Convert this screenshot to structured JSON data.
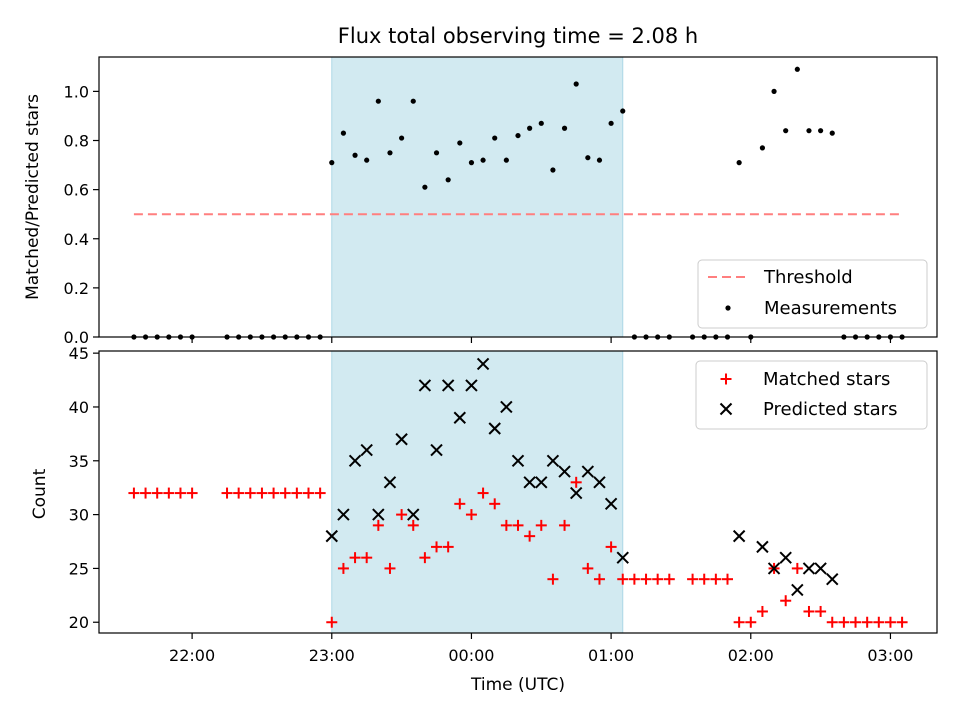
{
  "title": "Flux total observing time = 2.08 h",
  "colors": {
    "shade": "#add8e6",
    "threshold": "#ff7f7f",
    "measurement": "#000000",
    "matched": "#ff0000",
    "predicted": "#000000",
    "axis": "#000000"
  },
  "chart_data": [
    {
      "type": "scatter",
      "ylabel": "Matched/Predicted stars",
      "ylim": [
        0,
        1.14
      ],
      "yticks": [
        0.0,
        0.2,
        0.4,
        0.6,
        0.8,
        1.0
      ],
      "ytick_labels": [
        "0.0",
        "0.2",
        "0.4",
        "0.6",
        "0.8",
        "1.0"
      ],
      "shaded_span": [
        "23:00",
        "01:05"
      ],
      "threshold": {
        "y": 0.5,
        "x_range": [
          "21:35",
          "03:05"
        ],
        "label": "Threshold"
      },
      "legend": {
        "position": "lower right",
        "entries": [
          "Threshold",
          "Measurements"
        ]
      },
      "series": [
        {
          "name": "Measurements",
          "x": [
            "21:35",
            "21:40",
            "21:45",
            "21:50",
            "21:55",
            "22:00",
            "22:15",
            "22:20",
            "22:25",
            "22:30",
            "22:35",
            "22:40",
            "22:45",
            "22:50",
            "22:55",
            "23:00",
            "23:05",
            "23:10",
            "23:15",
            "23:20",
            "23:25",
            "23:30",
            "23:35",
            "23:40",
            "23:45",
            "23:50",
            "23:55",
            "00:00",
            "00:05",
            "00:10",
            "00:15",
            "00:20",
            "00:25",
            "00:30",
            "00:35",
            "00:40",
            "00:45",
            "00:50",
            "00:55",
            "01:00",
            "01:05",
            "01:10",
            "01:15",
            "01:20",
            "01:25",
            "01:35",
            "01:40",
            "01:45",
            "01:50",
            "02:00",
            "01:55",
            "02:05",
            "02:10",
            "02:15",
            "02:20",
            "02:25",
            "02:30",
            "02:35",
            "02:40",
            "02:45",
            "02:50",
            "02:55",
            "03:00",
            "03:05"
          ],
          "y": [
            0,
            0,
            0,
            0,
            0,
            0,
            0,
            0,
            0,
            0,
            0,
            0,
            0,
            0,
            0,
            0.71,
            0.83,
            0.74,
            0.72,
            0.96,
            0.75,
            0.81,
            0.96,
            0.61,
            0.75,
            0.64,
            0.79,
            0.71,
            0.72,
            0.81,
            0.72,
            0.82,
            0.85,
            0.87,
            0.68,
            0.85,
            1.03,
            0.73,
            0.72,
            0.87,
            0.92,
            0,
            0,
            0,
            0,
            0,
            0,
            0,
            0,
            0,
            0.71,
            0.77,
            1.0,
            0.84,
            1.09,
            0.84,
            0.84,
            0.83,
            0,
            0,
            0,
            0,
            0,
            0
          ]
        }
      ]
    },
    {
      "type": "scatter",
      "xlabel": "Time (UTC)",
      "ylabel": "Count",
      "ylim": [
        19,
        45.2
      ],
      "yticks": [
        20,
        25,
        30,
        35,
        40,
        45
      ],
      "ytick_labels": [
        "20",
        "25",
        "30",
        "35",
        "40",
        "45"
      ],
      "xlim": [
        "21:20",
        "03:20"
      ],
      "xticks": [
        "22:00",
        "23:00",
        "00:00",
        "01:00",
        "02:00",
        "03:00"
      ],
      "shaded_span": [
        "23:00",
        "01:05"
      ],
      "legend": {
        "position": "upper right",
        "entries": [
          "Matched stars",
          "Predicted stars"
        ]
      },
      "series": [
        {
          "name": "Matched stars",
          "marker": "+",
          "x": [
            "21:35",
            "21:40",
            "21:45",
            "21:50",
            "21:55",
            "22:00",
            "22:15",
            "22:20",
            "22:25",
            "22:30",
            "22:35",
            "22:40",
            "22:45",
            "22:50",
            "22:55",
            "23:00",
            "23:05",
            "23:10",
            "23:15",
            "23:20",
            "23:25",
            "23:30",
            "23:35",
            "23:40",
            "23:45",
            "23:50",
            "23:55",
            "00:00",
            "00:05",
            "00:10",
            "00:15",
            "00:20",
            "00:25",
            "00:30",
            "00:35",
            "00:40",
            "00:45",
            "00:50",
            "00:55",
            "01:00",
            "01:05",
            "01:10",
            "01:15",
            "01:20",
            "01:25",
            "01:35",
            "01:40",
            "01:45",
            "01:50",
            "01:55",
            "02:00",
            "02:05",
            "02:10",
            "02:15",
            "02:20",
            "02:25",
            "02:30",
            "02:35",
            "02:40",
            "02:45",
            "02:50",
            "02:55",
            "03:00",
            "03:05"
          ],
          "y": [
            32,
            32,
            32,
            32,
            32,
            32,
            32,
            32,
            32,
            32,
            32,
            32,
            32,
            32,
            32,
            20,
            25,
            26,
            26,
            29,
            25,
            30,
            29,
            26,
            27,
            27,
            31,
            30,
            32,
            31,
            29,
            29,
            28,
            29,
            24,
            29,
            33,
            25,
            24,
            27,
            24,
            24,
            24,
            24,
            24,
            24,
            24,
            24,
            24,
            20,
            20,
            21,
            25,
            22,
            25,
            21,
            21,
            20,
            20,
            20,
            20,
            20,
            20,
            20
          ]
        },
        {
          "name": "Predicted stars",
          "marker": "x",
          "x": [
            "23:00",
            "23:05",
            "23:10",
            "23:15",
            "23:20",
            "23:25",
            "23:30",
            "23:35",
            "23:40",
            "23:45",
            "23:50",
            "23:55",
            "00:00",
            "00:05",
            "00:10",
            "00:15",
            "00:20",
            "00:25",
            "00:30",
            "00:35",
            "00:40",
            "00:45",
            "00:50",
            "00:55",
            "01:00",
            "01:05",
            "01:55",
            "02:05",
            "02:10",
            "02:15",
            "02:20",
            "02:25",
            "02:30",
            "02:35"
          ],
          "y": [
            28,
            30,
            35,
            36,
            30,
            33,
            37,
            30,
            42,
            36,
            42,
            39,
            42,
            44,
            38,
            40,
            35,
            33,
            33,
            35,
            34,
            32,
            34,
            33,
            31,
            26,
            28,
            27,
            25,
            26,
            23,
            25,
            25,
            24
          ]
        }
      ]
    }
  ]
}
